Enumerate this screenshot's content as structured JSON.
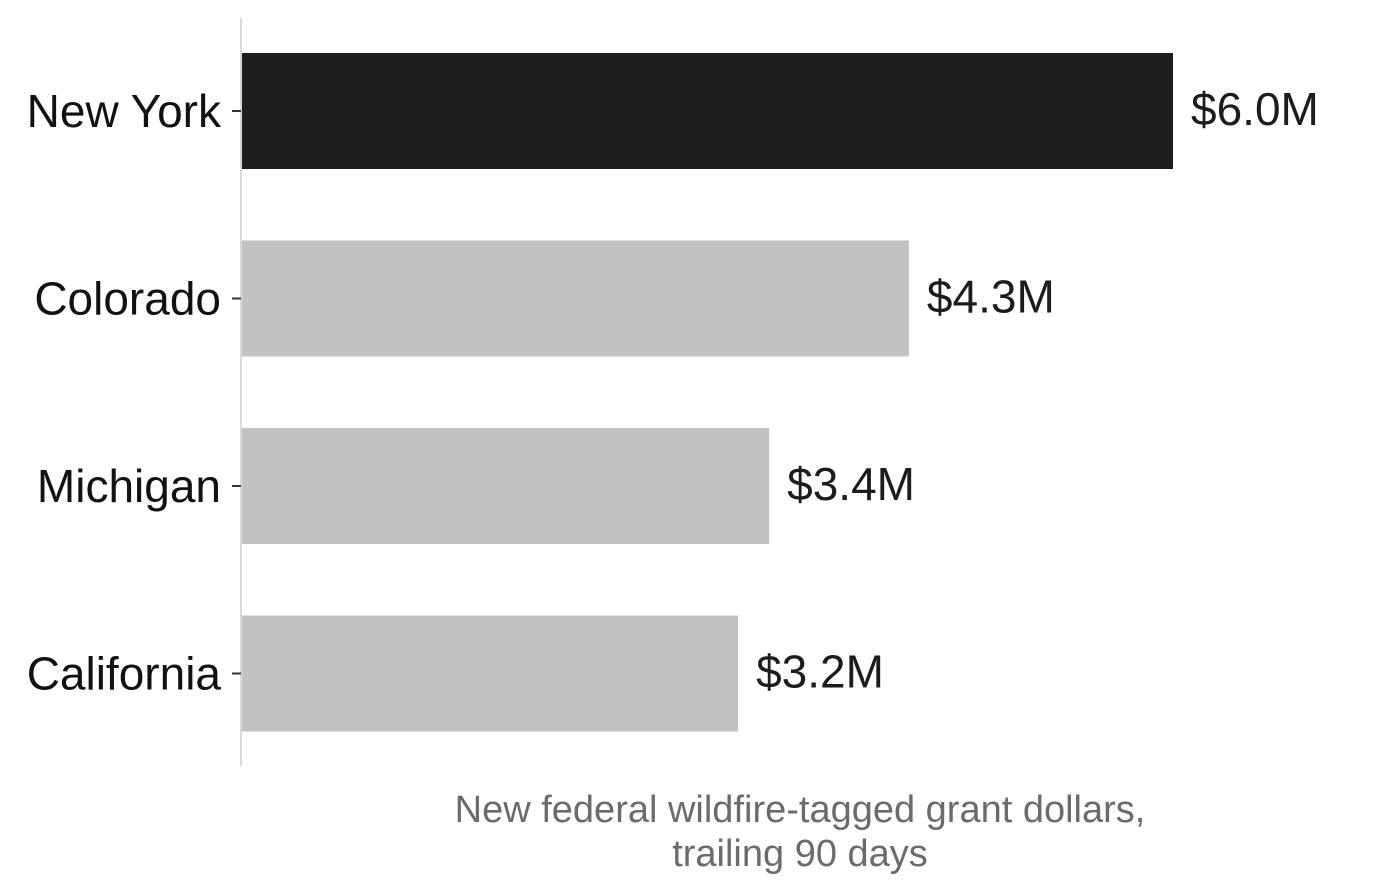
{
  "chart_data": {
    "type": "bar",
    "orientation": "horizontal",
    "categories": [
      "New York",
      "Colorado",
      "Michigan",
      "California"
    ],
    "values": [
      6.0,
      4.3,
      3.4,
      3.2
    ],
    "value_labels": [
      "$6.0M",
      "$4.3M",
      "$3.4M",
      "$3.2M"
    ],
    "xlabel_lines": [
      "New federal wildfire-tagged grant dollars,",
      "trailing 90 days"
    ],
    "ylabel": "",
    "title": "",
    "xlim": [
      0,
      6.0
    ],
    "grid": false,
    "highlight_category": "New York",
    "colors": {
      "highlight": "#1d1d1d",
      "default": "#c2c2c2",
      "axis": "#d9d9d9",
      "tick": "#333333"
    }
  }
}
